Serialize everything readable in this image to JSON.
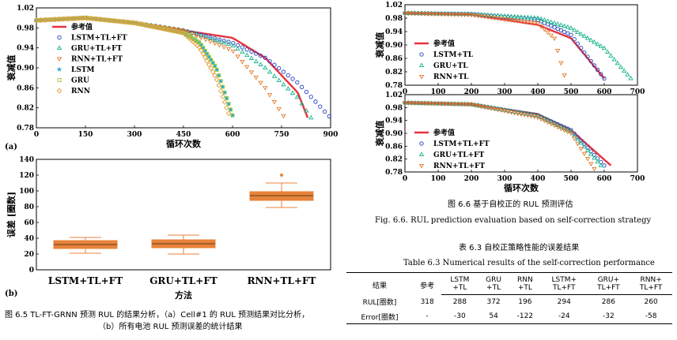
{
  "figure_a": {
    "panel_label": "(a)",
    "x_label": "循环次数",
    "y_label": "衰减值",
    "x_ticks": [
      "0",
      "150",
      "300",
      "450",
      "600",
      "750",
      "900"
    ],
    "y_ticks": [
      "0.78",
      "0.82",
      "0.86",
      "0.90",
      "0.94",
      "0.98",
      "1.02"
    ],
    "legend": [
      "参考值",
      "LSTM+TL+FT",
      "GRU+TL+FT",
      "RNN+TL+FT",
      "LSTM",
      "GRU",
      "RNN"
    ]
  },
  "figure_b": {
    "panel_label": "(b)",
    "x_label": "方法",
    "y_label": "误差 [圈数]",
    "y_ticks": [
      "0",
      "20",
      "40",
      "60",
      "80",
      "100",
      "120",
      "140"
    ],
    "categories": [
      "LSTM+TL+FT",
      "GRU+TL+FT",
      "RNN+TL+FT"
    ]
  },
  "caption_65": {
    "line1": "图 6.5 TL-FT-GRNN 预测 RUL 的结果分析，（a）Cell#1 的 RUL 预测结果对比分析，",
    "line2": "（b）所有电池 RUL 预测误差的统计结果"
  },
  "figure_66_top": {
    "x_ticks": [
      "0",
      "100",
      "200",
      "300",
      "400",
      "500",
      "600",
      "700"
    ],
    "y_label": "衰减值",
    "y_ticks": [
      "0.78",
      "0.82",
      "0.86",
      "0.90",
      "0.94",
      "0.98",
      "1.02"
    ],
    "legend": [
      "参考值",
      "LSTM+TL",
      "GRU+TL",
      "RNN+TL"
    ]
  },
  "figure_66_bottom": {
    "x_label": "循环次数",
    "x_ticks": [
      "0",
      "100",
      "200",
      "300",
      "400",
      "500",
      "600",
      "700"
    ],
    "y_label": "衰减值",
    "y_ticks": [
      "0.78",
      "0.82",
      "0.86",
      "0.90",
      "0.94",
      "0.98",
      "1.02"
    ],
    "legend": [
      "参考值",
      "LSTM+TL+FT",
      "GRU+TL+FT",
      "RNN+TL+FT"
    ]
  },
  "caption_66": {
    "cn": "图 6.6  基于自校正的 RUL 预测评估",
    "en": "Fig. 6.6. RUL prediction evaluation based on self-correction strategy"
  },
  "table_63": {
    "title_cn": "表 6.3  自校正策略性能的误差结果",
    "title_en": "Table 6.3 Numerical results of the self-correction performance",
    "header_top": [
      "结果",
      "参考",
      "LSTM",
      "GRU",
      "RNN",
      "LSTM+",
      "GRU+",
      "RNN+"
    ],
    "header_bottom": [
      "",
      "",
      "+TL",
      "+TL",
      "+TL",
      "TL+FT",
      "TL+FT",
      "TL+FT"
    ],
    "rows": [
      [
        "RUL[圈数]",
        "318",
        "288",
        "372",
        "196",
        "294",
        "286",
        "260"
      ],
      [
        "Error[圈数]",
        "-",
        "-30",
        "54",
        "-122",
        "-24",
        "-32",
        "-58"
      ]
    ]
  },
  "colors": {
    "reference": "#e8323c",
    "lstm": "#1f3fbf",
    "gru": "#17b38a",
    "rnn": "#e07a2c",
    "lstm_plain": "#2aa6e0",
    "gru_plain": "#9acd32",
    "rnn_plain": "#e0a040",
    "box": "#e8833a"
  },
  "chart_data": [
    {
      "type": "scatter",
      "xlim": [
        0,
        900
      ],
      "ylim": [
        0.78,
        1.02
      ],
      "xlabel": "循环次数",
      "ylabel": "衰减值",
      "series": [
        {
          "name": "参考值",
          "x": [
            0,
            150,
            300,
            450,
            600,
            700,
            800,
            830
          ],
          "y": [
            0.995,
            1.0,
            0.99,
            0.975,
            0.96,
            0.92,
            0.85,
            0.8
          ]
        },
        {
          "name": "LSTM+TL+FT",
          "x": [
            0,
            150,
            300,
            450,
            600,
            700,
            800,
            900
          ],
          "y": [
            0.995,
            1.0,
            0.99,
            0.975,
            0.95,
            0.92,
            0.87,
            0.8
          ]
        },
        {
          "name": "GRU+TL+FT",
          "x": [
            0,
            150,
            300,
            450,
            600,
            700,
            800,
            840
          ],
          "y": [
            0.995,
            1.0,
            0.99,
            0.975,
            0.945,
            0.9,
            0.84,
            0.8
          ]
        },
        {
          "name": "RNN+TL+FT",
          "x": [
            0,
            150,
            300,
            450,
            600,
            700,
            760
          ],
          "y": [
            0.995,
            1.0,
            0.99,
            0.975,
            0.935,
            0.86,
            0.8
          ]
        },
        {
          "name": "LSTM",
          "x": [
            0,
            150,
            300,
            450,
            500,
            550,
            600
          ],
          "y": [
            0.995,
            1.0,
            0.99,
            0.97,
            0.95,
            0.9,
            0.805
          ]
        },
        {
          "name": "GRU",
          "x": [
            0,
            150,
            300,
            450,
            500,
            550,
            600
          ],
          "y": [
            0.995,
            1.0,
            0.99,
            0.97,
            0.95,
            0.9,
            0.805
          ]
        },
        {
          "name": "RNN",
          "x": [
            0,
            150,
            300,
            450,
            500,
            550,
            590
          ],
          "y": [
            0.995,
            1.0,
            0.99,
            0.97,
            0.94,
            0.88,
            0.805
          ]
        }
      ]
    },
    {
      "type": "box",
      "categories": [
        "LSTM+TL+FT",
        "GRU+TL+FT",
        "RNN+TL+FT"
      ],
      "ylim": [
        0,
        140
      ],
      "ylabel": "误差 [圈数]",
      "xlabel": "方法",
      "boxes": [
        {
          "min": 21,
          "q1": 27,
          "median": 32,
          "q3": 37,
          "max": 41,
          "outliers": []
        },
        {
          "min": 20,
          "q1": 28,
          "median": 33,
          "q3": 38,
          "max": 44,
          "outliers": []
        },
        {
          "min": 79,
          "q1": 88,
          "median": 94,
          "q3": 99,
          "max": 110,
          "outliers": [
            120
          ]
        }
      ]
    },
    {
      "type": "scatter",
      "xlim": [
        0,
        700
      ],
      "ylim": [
        0.78,
        1.02
      ],
      "ylabel": "衰减值",
      "series": [
        {
          "name": "参考值",
          "x": [
            0,
            200,
            400,
            500,
            600
          ],
          "y": [
            0.995,
            0.99,
            0.96,
            0.92,
            0.8
          ]
        },
        {
          "name": "LSTM+TL",
          "x": [
            0,
            200,
            400,
            500,
            600
          ],
          "y": [
            0.995,
            0.992,
            0.975,
            0.93,
            0.8
          ]
        },
        {
          "name": "GRU+TL",
          "x": [
            0,
            200,
            400,
            500,
            600,
            680
          ],
          "y": [
            0.995,
            0.992,
            0.98,
            0.95,
            0.89,
            0.8
          ]
        },
        {
          "name": "RNN+TL",
          "x": [
            0,
            200,
            400,
            450,
            480
          ],
          "y": [
            0.995,
            0.99,
            0.965,
            0.92,
            0.81
          ]
        }
      ]
    },
    {
      "type": "scatter",
      "xlim": [
        0,
        700
      ],
      "ylim": [
        0.78,
        1.02
      ],
      "xlabel": "循环次数",
      "ylabel": "衰减值",
      "series": [
        {
          "name": "参考值",
          "x": [
            0,
            200,
            400,
            500,
            620
          ],
          "y": [
            0.995,
            0.99,
            0.96,
            0.91,
            0.8
          ]
        },
        {
          "name": "LSTM+TL+FT",
          "x": [
            0,
            200,
            400,
            500,
            600
          ],
          "y": [
            0.995,
            0.99,
            0.955,
            0.91,
            0.8
          ]
        },
        {
          "name": "GRU+TL+FT",
          "x": [
            0,
            200,
            400,
            500,
            590
          ],
          "y": [
            0.995,
            0.99,
            0.955,
            0.905,
            0.8
          ]
        },
        {
          "name": "RNN+TL+FT",
          "x": [
            0,
            200,
            400,
            500,
            570
          ],
          "y": [
            0.995,
            0.99,
            0.95,
            0.9,
            0.79
          ]
        }
      ]
    }
  ]
}
